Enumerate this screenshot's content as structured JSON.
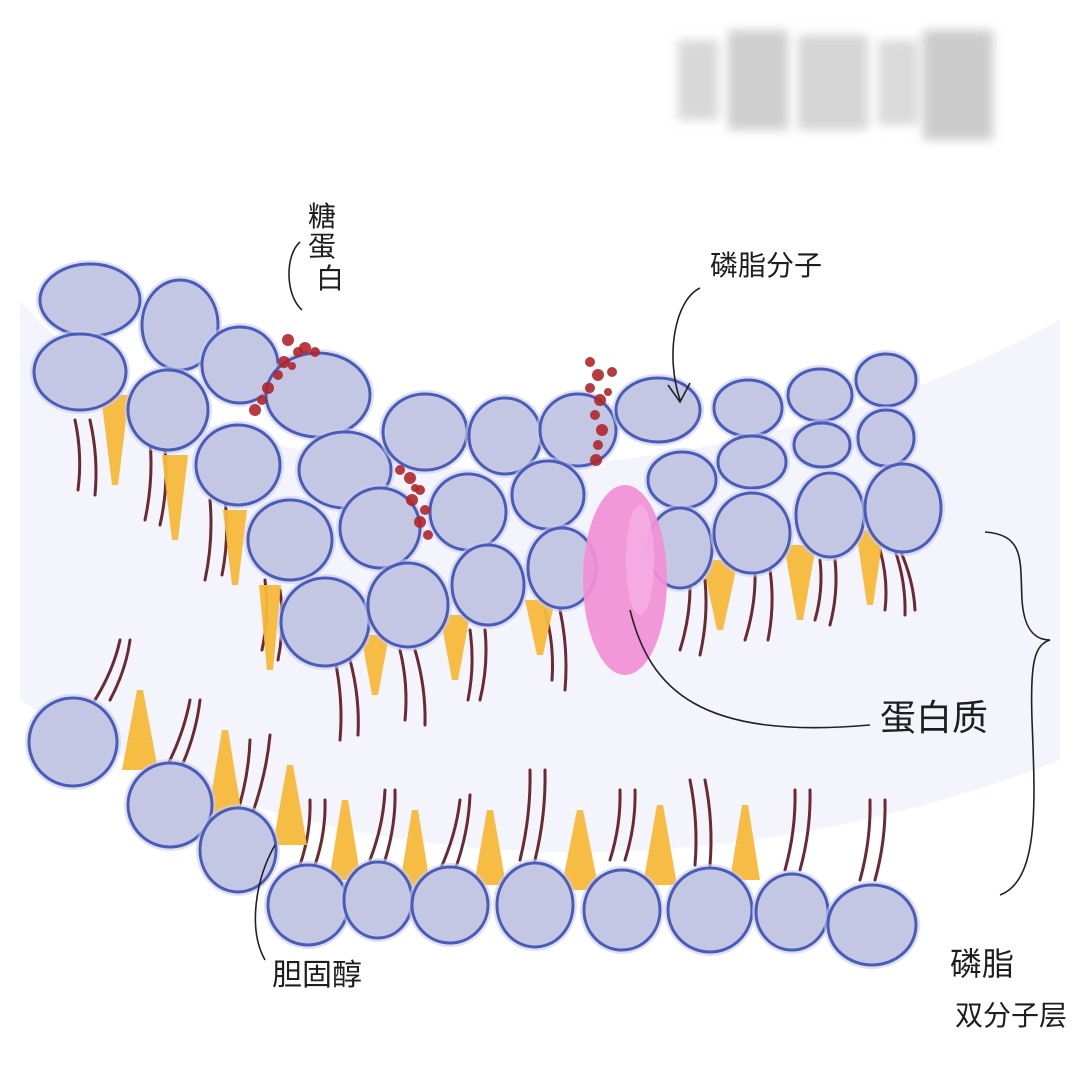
{
  "labels": {
    "glycoprotein": [
      "糖",
      "蛋",
      "白"
    ],
    "phospholipid_molecule": "磷脂分子",
    "protein": "蛋白质",
    "cholesterol": "胆固醇",
    "bilayer": [
      "磷脂",
      "双分子层"
    ]
  },
  "colors": {
    "head_fill": "#c3c7e4",
    "head_stroke": "#4a5cb8",
    "tail": "#6b2a32",
    "cholesterol": "#f5b83a",
    "protein": "#f28fd6",
    "sugar": "#b0262a",
    "line": "#222222"
  },
  "watermark": "blurred-watermark"
}
